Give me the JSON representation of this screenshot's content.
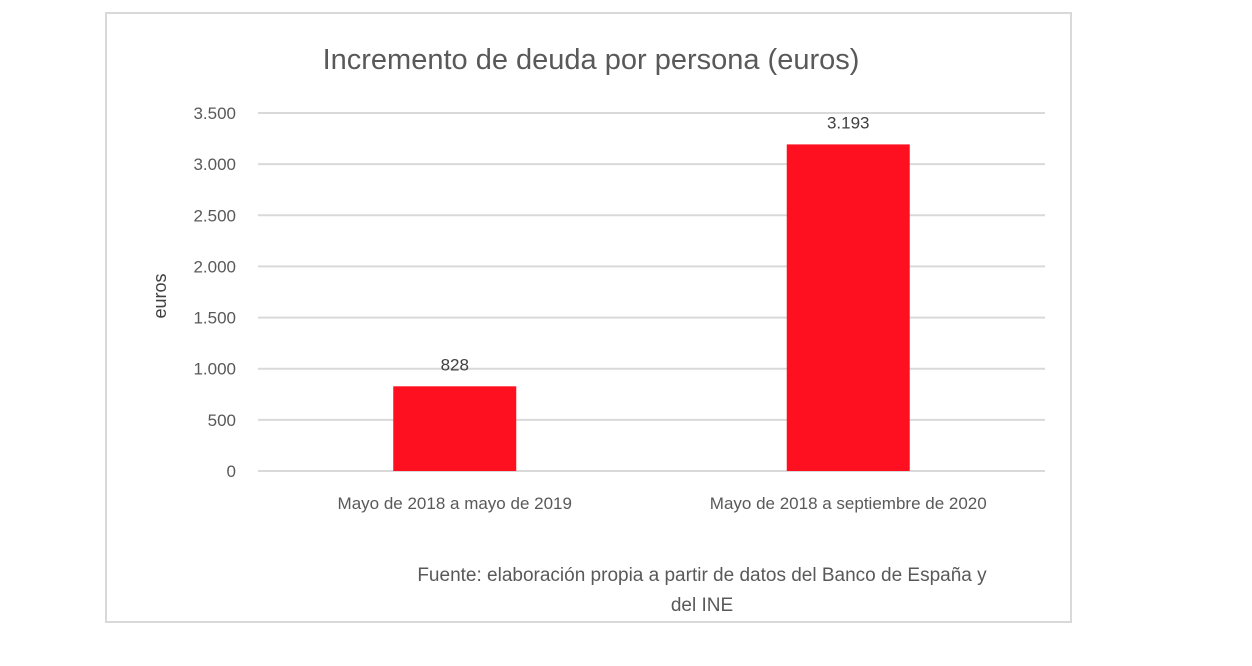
{
  "chart_data": {
    "type": "bar",
    "title": "Incremento de deuda por persona (euros)",
    "xlabel": "",
    "ylabel": "euros",
    "categories": [
      "Mayo de 2018 a mayo de 2019",
      "Mayo de 2018 a septiembre de 2020"
    ],
    "values": [
      828,
      3193
    ],
    "data_labels": [
      "828",
      "3.193"
    ],
    "ylim": [
      0,
      3500
    ],
    "yticks": [
      0,
      500,
      1000,
      1500,
      2000,
      2500,
      3000,
      3500
    ],
    "ytick_labels": [
      "0",
      "500",
      "1.000",
      "1.500",
      "2.000",
      "2.500",
      "3.000",
      "3.500"
    ],
    "grid": true,
    "legend": "none",
    "bar_color": "#ff1020",
    "source_lines": [
      "Fuente: elaboración propia a partir de datos del Banco de España y",
      "del INE"
    ]
  }
}
